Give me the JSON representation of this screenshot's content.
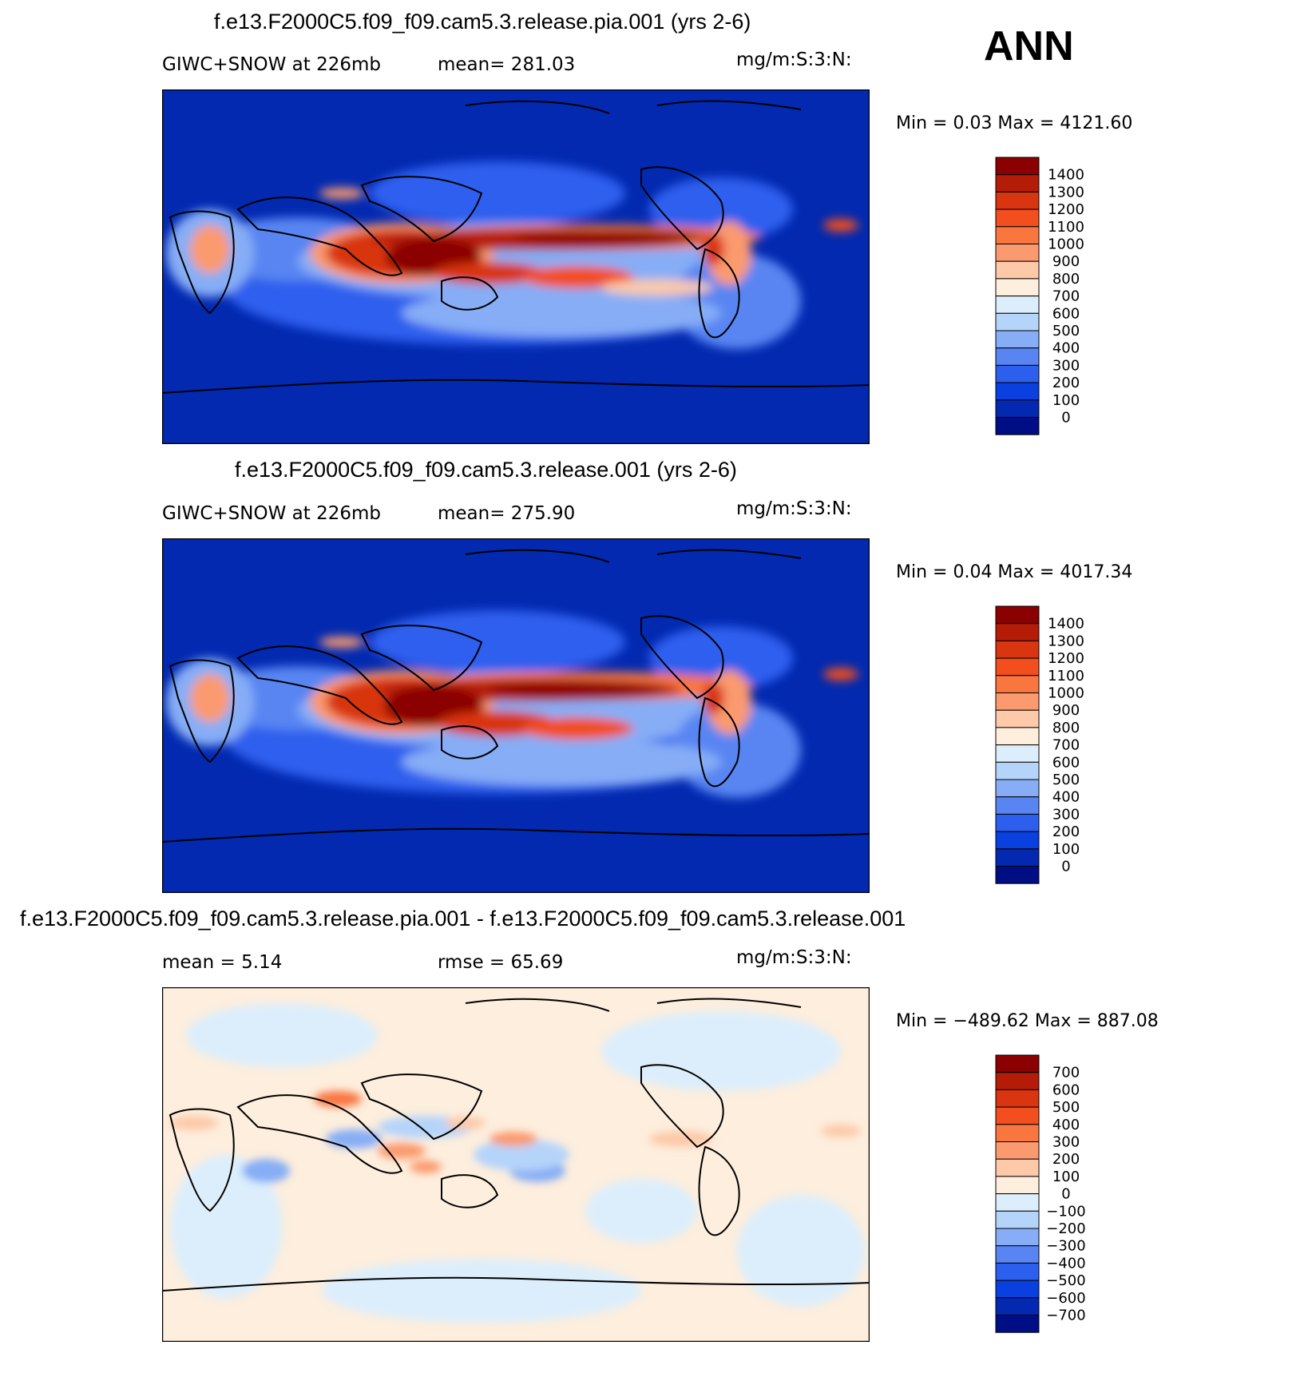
{
  "season": "ANN",
  "panels": [
    {
      "title": "f.e13.F2000C5.f09_f09.cam5.3.release.pia.001 (yrs 2-6)",
      "left_label": "GIWC+SNOW at 226mb",
      "center_label": "mean= 281.03",
      "units": "mg/m:S:3:N:",
      "minmax": "Min =    0.03 Max = 4121.60",
      "colorbar": {
        "labels": [
          "1400",
          "1300",
          "1200",
          "1100",
          "1000",
          "900",
          "800",
          "700",
          "600",
          "500",
          "400",
          "300",
          "200",
          "100",
          "0"
        ],
        "colors": [
          "#8b0000",
          "#b51c08",
          "#d83510",
          "#f24e1e",
          "#f9763f",
          "#fb9a6e",
          "#fdc9a8",
          "#fdeedd",
          "#dceefc",
          "#b5d4fa",
          "#86adf6",
          "#5885f2",
          "#2d5fee",
          "#0a3fe0",
          "#0229b0",
          "#000e85"
        ]
      },
      "field": "absolute"
    },
    {
      "title": "f.e13.F2000C5.f09_f09.cam5.3.release.001 (yrs 2-6)",
      "left_label": "GIWC+SNOW at 226mb",
      "center_label": "mean= 275.90",
      "units": "mg/m:S:3:N:",
      "minmax": "Min =    0.04 Max = 4017.34",
      "colorbar": {
        "labels": [
          "1400",
          "1300",
          "1200",
          "1100",
          "1000",
          "900",
          "800",
          "700",
          "600",
          "500",
          "400",
          "300",
          "200",
          "100",
          "0"
        ],
        "colors": [
          "#8b0000",
          "#b51c08",
          "#d83510",
          "#f24e1e",
          "#f9763f",
          "#fb9a6e",
          "#fdc9a8",
          "#fdeedd",
          "#dceefc",
          "#b5d4fa",
          "#86adf6",
          "#5885f2",
          "#2d5fee",
          "#0a3fe0",
          "#0229b0",
          "#000e85"
        ]
      },
      "field": "absolute"
    },
    {
      "title": "f.e13.F2000C5.f09_f09.cam5.3.release.pia.001 - f.e13.F2000C5.f09_f09.cam5.3.release.001",
      "left_label": "mean =    5.14",
      "center_label": "rmse =   65.69",
      "units": "mg/m:S:3:N:",
      "minmax": "Min = −489.62 Max = 887.08",
      "colorbar": {
        "labels": [
          "700",
          "600",
          "500",
          "400",
          "300",
          "200",
          "100",
          "0",
          "−100",
          "−200",
          "−300",
          "−400",
          "−500",
          "−600",
          "−700"
        ],
        "colors": [
          "#8b0000",
          "#b51c08",
          "#d83510",
          "#f24e1e",
          "#f9763f",
          "#fb9a6e",
          "#fdc9a8",
          "#fdeedd",
          "#dceefc",
          "#b5d4fa",
          "#86adf6",
          "#5885f2",
          "#2d5fee",
          "#0a3fe0",
          "#0229b0",
          "#000e85"
        ]
      },
      "field": "difference"
    }
  ],
  "colors": {
    "ocean_low": "#0229b0",
    "diff_background": "#fdeedd"
  }
}
